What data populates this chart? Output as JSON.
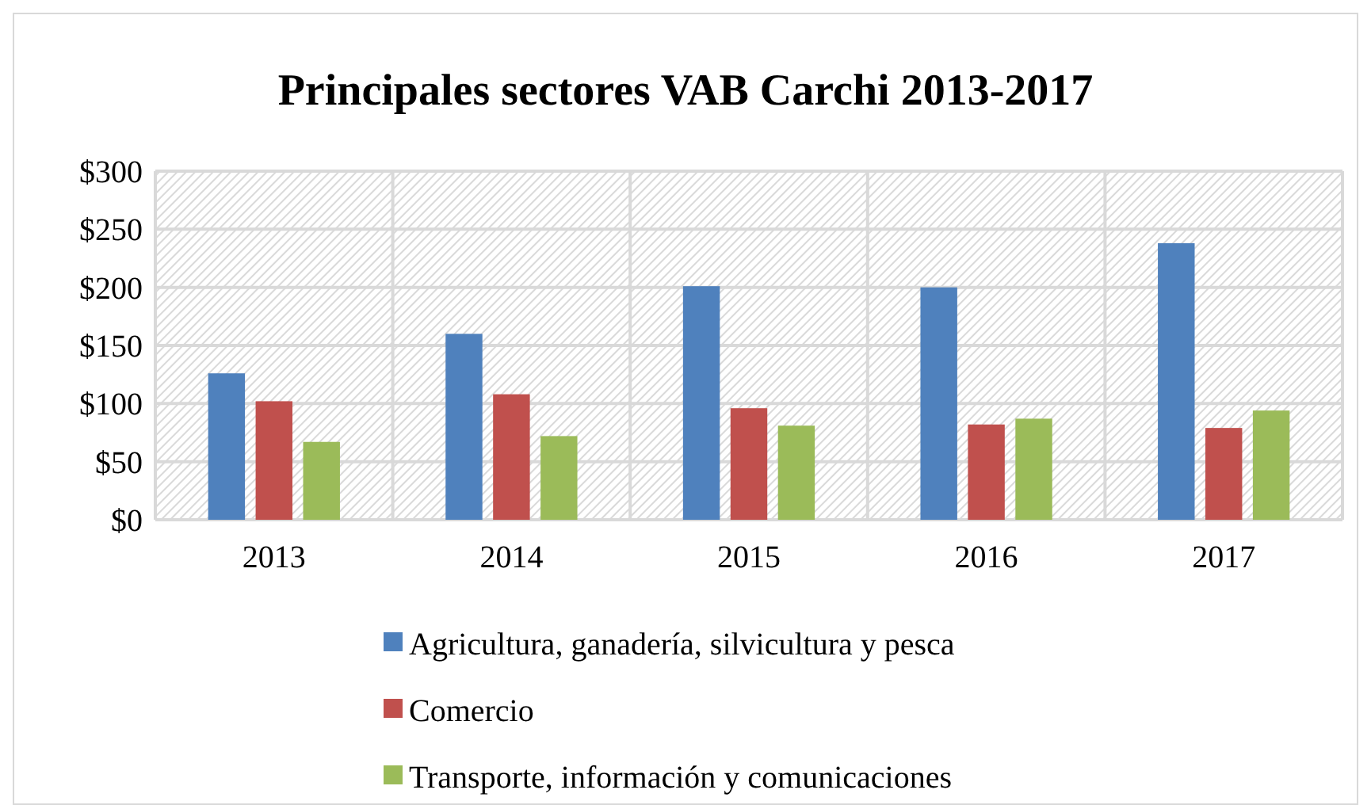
{
  "chart_data": {
    "type": "bar",
    "title": "Principales sectores VAB Carchi 2013-2017",
    "categories": [
      "2013",
      "2014",
      "2015",
      "2016",
      "2017"
    ],
    "series": [
      {
        "name": "Agricultura, ganadería, silvicultura y pesca",
        "color": "#4f81bd",
        "values": [
          126,
          160,
          201,
          200,
          238
        ]
      },
      {
        "name": "Comercio",
        "color": "#c0504d",
        "values": [
          102,
          108,
          96,
          82,
          79
        ]
      },
      {
        "name": "Transporte, información y comunicaciones",
        "color": "#9bbb59",
        "values": [
          67,
          72,
          81,
          87,
          94
        ]
      }
    ],
    "ylim": [
      0,
      300
    ],
    "yticks": [
      {
        "value": 0,
        "label": "$0"
      },
      {
        "value": 50,
        "label": "$50"
      },
      {
        "value": 100,
        "label": "$100"
      },
      {
        "value": 150,
        "label": "$150"
      },
      {
        "value": 200,
        "label": "$200"
      },
      {
        "value": 250,
        "label": "$250"
      },
      {
        "value": 300,
        "label": "$300"
      }
    ],
    "grid": true,
    "legend": "bottom"
  }
}
